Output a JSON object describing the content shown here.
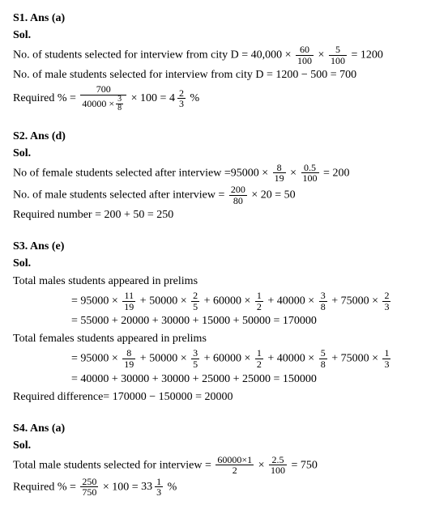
{
  "s1": {
    "heading": "S1. Ans (a)",
    "sol": "Sol.",
    "line1_pre": "No. of students selected for interview from city D = 40,000 × ",
    "f1_num": "60",
    "f1_den": "100",
    "line1_mid": " × ",
    "f2_num": "5",
    "f2_den": "100",
    "line1_post": " = 1200",
    "line2": "No. of male students selected for interview from city D = 1200 − 500 = 700",
    "line3_pre": "Required % = ",
    "f3_num": "700",
    "f3_den": "40000 ×",
    "f3_den_inner_num": "3",
    "f3_den_inner_den": "8",
    "line3_mid": " × 100 = ",
    "mixed_whole": "4",
    "mixed_num": "2",
    "mixed_den": "3",
    "line3_post": " %"
  },
  "s2": {
    "heading": "S2. Ans (d)",
    "sol": "Sol.",
    "line1_pre": "No of female students selected after interview =95000 × ",
    "f1_num": "8",
    "f1_den": "19",
    "line1_mid": " × ",
    "f2_num": "0.5",
    "f2_den": "100",
    "line1_post": " =  200",
    "line2_pre": "No. of male students selected after interview = ",
    "f3_num": "200",
    "f3_den": "80",
    "line2_post": " × 20 =  50",
    "line3": "Required number = 200 + 50 = 250"
  },
  "s3": {
    "heading": "S3. Ans (e)",
    "sol": "Sol.",
    "line1": "Total males students appeared in prelims",
    "line2_pre": "= 95000 × ",
    "a_num": "11",
    "a_den": "19",
    "line2_m1": " + 50000 × ",
    "b_num": "2",
    "b_den": "5",
    "line2_m2": " + 60000 × ",
    "c_num": "1",
    "c_den": "2",
    "line2_m3": " + 40000 × ",
    "d_num": "3",
    "d_den": "8",
    "line2_m4": " + 75000 × ",
    "e_num": "2",
    "e_den": "3",
    "line3": "= 55000 + 20000 + 30000 + 15000 + 50000 = 170000",
    "line4": " Total females students appeared in prelims",
    "line5_pre": "= 95000 × ",
    "f_num": "8",
    "f_den": "19",
    "line5_m1": " + 50000 × ",
    "g_num": "3",
    "g_den": "5",
    "line5_m2": " + 60000 × ",
    "h_num": "1",
    "h_den": "2",
    "line5_m3": " + 40000 × ",
    "i_num": "5",
    "i_den": "8",
    "line5_m4": " + 75000 × ",
    "j_num": "1",
    "j_den": "3",
    "line6": "= 40000 + 30000 + 30000 + 25000 + 25000 = 150000",
    "line7": "Required difference= 170000 − 150000 = 20000"
  },
  "s4": {
    "heading": "S4. Ans (a)",
    "sol": "Sol.",
    "line1_pre": "Total male students selected for interview = ",
    "f1_num": "60000×1",
    "f1_den": "2",
    "line1_mid": " × ",
    "f2_num": "2.5",
    "f2_den": "100",
    "line1_post": " = 750",
    "line2_pre": "Required % = ",
    "f3_num": "250",
    "f3_den": "750",
    "line2_mid": " × 100 = ",
    "mixed_whole": "33",
    "mixed_num": "1",
    "mixed_den": "3",
    "line2_post": "%"
  }
}
